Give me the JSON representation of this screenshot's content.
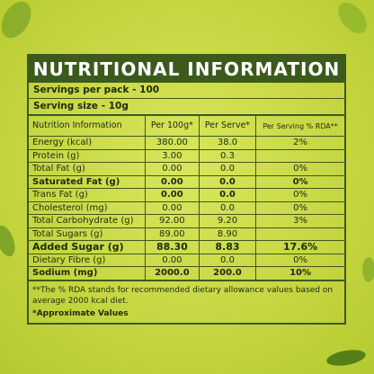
{
  "header": {
    "title": "NUTRITIONAL INFORMATION"
  },
  "servings": [
    "Servings per pack - 100",
    "Serving size - 10g"
  ],
  "table": {
    "columns": [
      "Nutrition Information",
      "Per 100g*",
      "Per Serve*",
      "Per Serving % RDA**"
    ],
    "rows": [
      [
        "Energy (kcal)",
        "380.00",
        "38.0",
        "2%"
      ],
      [
        "Protein (g)",
        "3.00",
        "0.3"
      ],
      [
        "Total Fat (g)",
        "0.00",
        "0.0",
        "0%"
      ],
      [
        "Saturated Fat (g)",
        "0.00",
        "0.0",
        "0%"
      ],
      [
        "Trans Fat (g)",
        "0.00",
        "0.0",
        "0%"
      ],
      [
        "Cholesterol (mg)",
        "0.00",
        "0.0",
        "0%"
      ],
      [
        "Total Carbohydrate (g)",
        "92.00",
        "9.20",
        "3%"
      ],
      [
        "Total Sugars (g)",
        "89.00",
        "8.90"
      ],
      [
        "Added Sugar (g)",
        "88.30",
        "8.83",
        "17.6%"
      ],
      [
        "Dietary Fibre (g)",
        "0.00",
        "0.0",
        "0%"
      ],
      [
        "Sodium (mg)",
        "2000.0",
        "200.0",
        "10%"
      ]
    ]
  },
  "footnotes": [
    "**The % RDA stands for recommended dietary allowance values based on average 2000 kcal diet.",
    "*Approximate Values"
  ]
}
